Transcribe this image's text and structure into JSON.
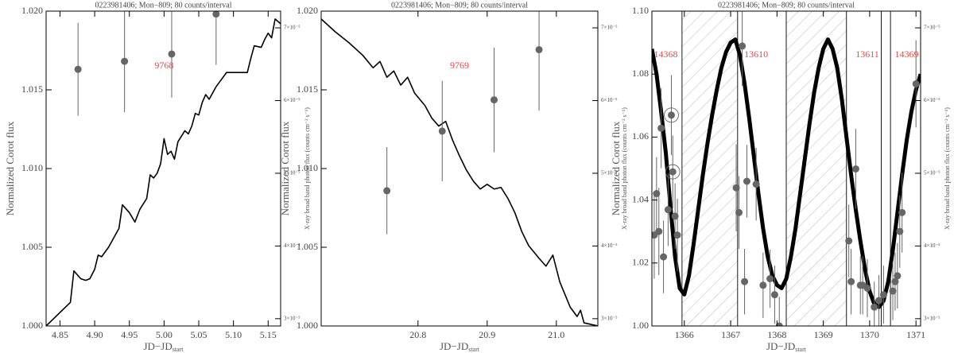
{
  "chart_data": [
    {
      "type": "line",
      "title": "0223981406; Mon−809; 80 counts/interval",
      "xlabel": "JD−JD",
      "xlabel_sub": "start",
      "ylabel": "Normalized Corot flux",
      "y2label": "X-ray broad band photon flux (counts cm⁻² s⁻¹)",
      "xlim": [
        4.83,
        5.168
      ],
      "xticks": [
        4.85,
        {
          "value": 4.9,
          "label": "4.90"
        },
        4.95,
        {
          "value": 5.0,
          "label": "5.00"
        },
        5.05,
        {
          "value": 5.1,
          "label": "5.10"
        },
        5.15
      ],
      "ylim": [
        1.0,
        1.02
      ],
      "yticks": [
        {
          "value": 1.0,
          "label": "1.000"
        },
        1.005,
        {
          "value": 1.01,
          "label": "1.010"
        },
        1.015,
        {
          "value": 1.02,
          "label": "1.020"
        }
      ],
      "y2lim": [
        2.9e-05,
        7.23e-05
      ],
      "y2ticks": [
        {
          "value": 3e-05,
          "label": "3×10⁻⁵"
        },
        {
          "value": 4e-05,
          "label": "4×10⁻⁵"
        },
        {
          "value": 5e-05,
          "label": "5×10⁻⁵"
        },
        {
          "value": 6e-05,
          "label": "6×10⁻⁵"
        },
        {
          "value": 7e-05,
          "label": "7×10⁻⁵"
        }
      ],
      "annotation_color": "#ff4040",
      "annotations": [
        {
          "text": "9768",
          "x": 5.0,
          "y": 1.0165
        }
      ],
      "series": [
        {
          "style": "line",
          "color": "#000000",
          "line_width": 1.6,
          "x": [
            4.83,
            4.865,
            4.87,
            4.88,
            4.887,
            4.893,
            4.9,
            4.905,
            4.91,
            4.92,
            4.935,
            4.94,
            4.95,
            4.958,
            4.965,
            4.975,
            4.98,
            4.985,
            4.99,
            4.995,
            5.0,
            5.005,
            5.01,
            5.015,
            5.02,
            5.03,
            5.035,
            5.04,
            5.045,
            5.05,
            5.055,
            5.06,
            5.065,
            5.075,
            5.09,
            5.12,
            5.125,
            5.13,
            5.14,
            5.145,
            5.15,
            5.155,
            5.16,
            5.168
          ],
          "values": [
            1.0,
            1.0015,
            1.0035,
            1.003,
            1.0029,
            1.003,
            1.0036,
            1.0045,
            1.0044,
            1.005,
            1.0062,
            1.0077,
            1.0072,
            1.0066,
            1.0074,
            1.0081,
            1.0096,
            1.0094,
            1.0097,
            1.0103,
            1.0119,
            1.0109,
            1.0111,
            1.0106,
            1.0117,
            1.0124,
            1.0122,
            1.0127,
            1.0135,
            1.0134,
            1.0142,
            1.0147,
            1.0144,
            1.0152,
            1.0161,
            1.0161,
            1.017,
            1.0178,
            1.0177,
            1.0182,
            1.0186,
            1.0183,
            1.0195,
            1.0192
          ]
        },
        {
          "style": "errorbar",
          "axis": "y2",
          "color": "#666666",
          "x": [
            4.876,
            4.943,
            5.011,
            5.075
          ],
          "values": [
            6.43e-05,
            6.54e-05,
            6.64e-05,
            7.19e-05
          ],
          "errors": [
            6.4e-06,
            7e-06,
            6e-06,
            7e-06
          ]
        }
      ]
    },
    {
      "type": "line",
      "title": "0223981406; Mon−809; 80 counts/interval",
      "xlabel": "JD−JD",
      "xlabel_sub": "start",
      "ylabel": "Normalized Corot flux",
      "y2label": "X-ray broad band photon flux (counts cm⁻² s⁻¹)",
      "xlim": [
        20.66,
        21.06
      ],
      "xticks": [
        20.8,
        20.9,
        {
          "value": 21.0,
          "label": "21.0"
        }
      ],
      "ylim": [
        1.0,
        1.02
      ],
      "yticks": [
        {
          "value": 1.0,
          "label": "1.000"
        },
        1.005,
        {
          "value": 1.01,
          "label": "1.010"
        },
        1.015,
        {
          "value": 1.02,
          "label": "1.020"
        }
      ],
      "y2lim": [
        2.9e-05,
        7.23e-05
      ],
      "y2ticks": [
        {
          "value": 3e-05,
          "label": "3×10⁻⁵"
        },
        {
          "value": 4e-05,
          "label": "4×10⁻⁵"
        },
        {
          "value": 5e-05,
          "label": "5×10⁻⁵"
        },
        {
          "value": 6e-05,
          "label": "6×10⁻⁵"
        },
        {
          "value": 7e-05,
          "label": "7×10⁻⁵"
        }
      ],
      "annotation_color": "#ff4040",
      "annotations": [
        {
          "text": "9769",
          "x": 20.86,
          "y": 1.0165
        }
      ],
      "series": [
        {
          "style": "line",
          "color": "#000000",
          "line_width": 1.6,
          "x": [
            20.66,
            20.68,
            20.7,
            20.72,
            20.735,
            20.745,
            20.755,
            20.765,
            20.775,
            20.785,
            20.795,
            20.81,
            20.82,
            20.83,
            20.84,
            20.85,
            20.86,
            20.87,
            20.88,
            20.89,
            20.9,
            20.91,
            20.92,
            20.93,
            20.94,
            20.95,
            20.96,
            20.975,
            20.985,
            20.995,
            21.005,
            21.02,
            21.03,
            21.035,
            21.04,
            21.06
          ],
          "values": [
            1.0195,
            1.0187,
            1.018,
            1.0172,
            1.0164,
            1.0168,
            1.0158,
            1.0162,
            1.0153,
            1.0158,
            1.0148,
            1.014,
            1.0132,
            1.0127,
            1.013,
            1.0118,
            1.0108,
            1.0099,
            1.0092,
            1.0087,
            1.009,
            1.0087,
            1.0088,
            1.0081,
            1.0072,
            1.006,
            1.0051,
            1.0043,
            1.0038,
            1.0045,
            1.0028,
            1.0012,
            1.0006,
            1.001,
            1.0002,
            1.0
          ]
        },
        {
          "style": "errorbar",
          "axis": "y2",
          "color": "#666666",
          "x": [
            20.755,
            20.835,
            20.91,
            20.975
          ],
          "values": [
            4.76e-05,
            5.58e-05,
            6.01e-05,
            6.7e-05
          ],
          "errors": [
            6e-06,
            6.9e-06,
            7.2e-06,
            8.4e-06
          ]
        }
      ]
    },
    {
      "type": "line",
      "title": "0223981406; Mon−809; 80 counts/interval",
      "xlabel": "JD−JD",
      "xlabel_sub": "start",
      "ylabel": "Normalized Corot flux",
      "y2label": "X-ray broad band photon flux (counts cm⁻² s⁻¹)",
      "xlim": [
        1365.3,
        1371.1
      ],
      "xticks": [
        1366,
        1367,
        1368,
        1369,
        1370,
        1371
      ],
      "ylim": [
        1.0,
        1.1
      ],
      "yticks": [
        {
          "value": 1.0,
          "label": "1.00"
        },
        1.02,
        1.04,
        1.06,
        1.08,
        {
          "value": 1.1,
          "label": "1.10"
        }
      ],
      "y2lim": [
        2.9e-05,
        7.23e-05
      ],
      "y2ticks": [
        {
          "value": 3e-05,
          "label": "3×10⁻⁵"
        },
        {
          "value": 4e-05,
          "label": "4×10⁻⁵"
        },
        {
          "value": 5e-05,
          "label": "5×10⁻⁵"
        },
        {
          "value": 6e-05,
          "label": "6×10⁻⁵"
        },
        {
          "value": 7e-05,
          "label": "7×10⁻⁵"
        }
      ],
      "vlines": [
        1365.95,
        1367.15,
        1368.2,
        1369.5,
        1370.25,
        1370.45
      ],
      "shaded_spans": [
        [
          1365.95,
          1367.15
        ],
        [
          1368.2,
          1369.5
        ]
      ],
      "highlight_points": [
        6,
        7
      ],
      "annotation_color": "#ff4040",
      "annotations": [
        {
          "text": "14368",
          "x": 1365.6,
          "y": 1.086
        },
        {
          "text": "13610",
          "x": 1367.55,
          "y": 1.086
        },
        {
          "text": "13611",
          "x": 1369.95,
          "y": 1.086
        },
        {
          "text": "14369",
          "x": 1370.8,
          "y": 1.086
        }
      ],
      "series": [
        {
          "style": "line",
          "color": "#000000",
          "line_width": 5,
          "x": [
            1365.3,
            1365.4,
            1365.5,
            1365.6,
            1365.7,
            1365.8,
            1365.9,
            1366.0,
            1366.1,
            1366.2,
            1366.3,
            1366.4,
            1366.5,
            1366.6,
            1366.7,
            1366.8,
            1366.9,
            1367.0,
            1367.1,
            1367.2,
            1367.3,
            1367.4,
            1367.5,
            1367.6,
            1367.7,
            1367.8,
            1367.9,
            1368.0,
            1368.1,
            1368.2,
            1368.3,
            1368.4,
            1368.5,
            1368.6,
            1368.7,
            1368.8,
            1368.9,
            1369.0,
            1369.1,
            1369.2,
            1369.3,
            1369.4,
            1369.5,
            1369.6,
            1369.7,
            1369.8,
            1369.9,
            1370.0,
            1370.1,
            1370.2,
            1370.3,
            1370.4,
            1370.5,
            1370.6,
            1370.7,
            1370.8,
            1370.9,
            1371.0,
            1371.1
          ],
          "values": [
            1.088,
            1.08,
            1.068,
            1.055,
            1.038,
            1.022,
            1.012,
            1.01,
            1.016,
            1.026,
            1.037,
            1.048,
            1.058,
            1.067,
            1.075,
            1.082,
            1.087,
            1.09,
            1.091,
            1.086,
            1.077,
            1.066,
            1.054,
            1.042,
            1.031,
            1.022,
            1.016,
            1.013,
            1.012,
            1.015,
            1.022,
            1.031,
            1.042,
            1.053,
            1.064,
            1.074,
            1.082,
            1.088,
            1.091,
            1.088,
            1.082,
            1.072,
            1.06,
            1.048,
            1.037,
            1.027,
            1.018,
            1.011,
            1.007,
            1.006,
            1.008,
            1.014,
            1.024,
            1.036,
            1.048,
            1.059,
            1.068,
            1.075,
            1.08
          ]
        },
        {
          "style": "errorbar",
          "axis": "y2",
          "color": "#666666",
          "x": [
            1365.35,
            1365.4,
            1365.45,
            1365.5,
            1365.55,
            1365.65,
            1365.72,
            1365.75,
            1365.8,
            1365.85,
            1367.12,
            1367.18,
            1367.25,
            1367.3,
            1367.35,
            1367.55,
            1367.7,
            1367.85,
            1367.95,
            1368.05,
            1369.55,
            1369.6,
            1369.7,
            1369.8,
            1369.85,
            1369.95,
            1370.1,
            1370.2,
            1370.3,
            1370.5,
            1370.55,
            1370.6,
            1370.65,
            1370.7,
            1371.0
          ],
          "values": [
            4.15e-05,
            4.72e-05,
            4.2e-05,
            5.62e-05,
            3.85e-05,
            4.5e-05,
            5.8e-05,
            5.02e-05,
            4.41e-05,
            4.15e-05,
            4.8e-05,
            4.46e-05,
            6.75e-05,
            3.51e-05,
            4.89e-05,
            4.85e-05,
            3.46e-05,
            3.55e-05,
            3.33e-05,
            2.9e-05,
            4.07e-05,
            3.51e-05,
            5.06e-05,
            3.46e-05,
            3.46e-05,
            3.42e-05,
            3.16e-05,
            3.25e-05,
            3.33e-05,
            3.38e-05,
            3.51e-05,
            3.59e-05,
            4.2e-05,
            4.46e-05,
            6.23e-05
          ],
          "errors": [
            6e-06,
            5e-06,
            6e-06,
            5.5e-06,
            5e-06,
            5e-06,
            5.5e-06,
            5e-06,
            4.5e-06,
            5e-06,
            6e-06,
            5e-06,
            5.5e-06,
            4.5e-06,
            5e-06,
            5e-06,
            4.5e-06,
            4e-06,
            4e-06,
            4e-06,
            5e-06,
            4.5e-06,
            5.5e-06,
            4e-06,
            4e-06,
            4e-06,
            3.5e-06,
            3.5e-06,
            4e-06,
            4e-06,
            4e-06,
            4.5e-06,
            5e-06,
            5.5e-06,
            6e-06
          ]
        }
      ]
    }
  ]
}
